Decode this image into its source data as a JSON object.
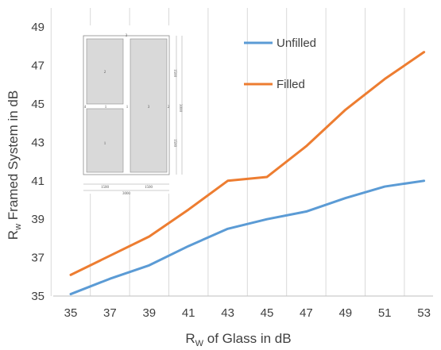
{
  "chart_data": {
    "type": "line",
    "x": [
      35,
      37,
      39,
      41,
      43,
      45,
      47,
      49,
      51,
      53
    ],
    "x_ticks": [
      "35",
      "37",
      "39",
      "41",
      "43",
      "45",
      "47",
      "49",
      "51",
      "53"
    ],
    "y_ticks": [
      "35",
      "37",
      "39",
      "41",
      "43",
      "45",
      "47",
      "49"
    ],
    "ylim": [
      35,
      50
    ],
    "xlabel_main": "R",
    "xlabel_sub": "W",
    "xlabel_rest": " of Glass in dB",
    "ylabel_main": "R",
    "ylabel_sub": "w",
    "ylabel_rest": " Framed System in dB",
    "grid": "vertical",
    "legend_position": "top-right",
    "series": [
      {
        "name": "Unfilled",
        "color": "#5b9bd5",
        "values": [
          35.1,
          35.9,
          36.6,
          37.6,
          38.5,
          39.0,
          39.4,
          40.1,
          40.7,
          41.0
        ]
      },
      {
        "name": "Filled",
        "color": "#ed7d31",
        "values": [
          36.1,
          37.1,
          38.1,
          39.5,
          41.0,
          41.2,
          42.8,
          44.7,
          46.3,
          47.7
        ]
      }
    ]
  },
  "inset": {
    "panel_labels": [
      "2",
      "1",
      "3"
    ],
    "top_mark": "3",
    "joint_labels": [
      "4",
      "1",
      "1",
      "2"
    ],
    "right_dims": [
      "1500",
      "3000",
      "1500"
    ],
    "bottom_dims": [
      "1500",
      "1500"
    ],
    "bottom_total": "3000"
  }
}
